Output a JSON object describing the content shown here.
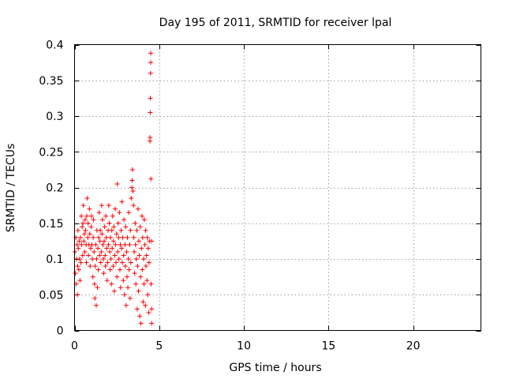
{
  "chart_data": {
    "type": "scatter",
    "title": "Day 195 of 2011, SRMTID for receiver lpal",
    "xlabel": "GPS time / hours",
    "ylabel": "SRMTID / TECUs",
    "xlim": [
      0,
      24
    ],
    "ylim": [
      0,
      0.4
    ],
    "xticks": [
      0,
      5,
      10,
      15,
      20
    ],
    "xtick_labels": [
      "0",
      "5",
      "10",
      "15",
      "20"
    ],
    "yticks": [
      0,
      0.05,
      0.1,
      0.15,
      0.2,
      0.25,
      0.3,
      0.35,
      0.4
    ],
    "ytick_labels": [
      "0",
      "0.05",
      "0.1",
      "0.15",
      "0.2",
      "0.25",
      "0.3",
      "0.35",
      "0.4"
    ],
    "grid": true,
    "marker": "+",
    "series": [
      {
        "name": "SRMTID",
        "color": "#ff0000",
        "points": [
          [
            0.02,
            0.11
          ],
          [
            0.05,
            0.08
          ],
          [
            0.08,
            0.13
          ],
          [
            0.1,
            0.065
          ],
          [
            0.12,
            0.1
          ],
          [
            0.15,
            0.12
          ],
          [
            0.17,
            0.05
          ],
          [
            0.18,
            0.09
          ],
          [
            0.2,
            0.14
          ],
          [
            0.22,
            0.115
          ],
          [
            0.25,
            0.085
          ],
          [
            0.27,
            0.125
          ],
          [
            0.3,
            0.1
          ],
          [
            0.32,
            0.07
          ],
          [
            0.35,
            0.13
          ],
          [
            0.37,
            0.095
          ],
          [
            0.4,
            0.16
          ],
          [
            0.42,
            0.12
          ],
          [
            0.45,
            0.145
          ],
          [
            0.48,
            0.105
          ],
          [
            0.5,
            0.15
          ],
          [
            0.52,
            0.175
          ],
          [
            0.55,
            0.125
          ],
          [
            0.58,
            0.135
          ],
          [
            0.6,
            0.11
          ],
          [
            0.62,
            0.155
          ],
          [
            0.65,
            0.14
          ],
          [
            0.68,
            0.12
          ],
          [
            0.7,
            0.095
          ],
          [
            0.72,
            0.16
          ],
          [
            0.75,
            0.185
          ],
          [
            0.78,
            0.13
          ],
          [
            0.8,
            0.15
          ],
          [
            0.82,
            0.105
          ],
          [
            0.85,
            0.12
          ],
          [
            0.88,
            0.17
          ],
          [
            0.9,
            0.135
          ],
          [
            0.92,
            0.09
          ],
          [
            0.95,
            0.115
          ],
          [
            0.98,
            0.145
          ],
          [
            1.0,
            0.16
          ],
          [
            1.02,
            0.12
          ],
          [
            1.05,
            0.1
          ],
          [
            1.08,
            0.075
          ],
          [
            1.1,
            0.13
          ],
          [
            1.12,
            0.155
          ],
          [
            1.15,
            0.11
          ],
          [
            1.18,
            0.065
          ],
          [
            1.2,
            0.045
          ],
          [
            1.22,
            0.09
          ],
          [
            1.25,
            0.12
          ],
          [
            1.28,
            0.035
          ],
          [
            1.3,
            0.1
          ],
          [
            1.32,
            0.14
          ],
          [
            1.35,
            0.06
          ],
          [
            1.38,
            0.115
          ],
          [
            1.4,
            0.085
          ],
          [
            1.42,
            0.13
          ],
          [
            1.45,
            0.165
          ],
          [
            1.48,
            0.105
          ],
          [
            1.5,
            0.125
          ],
          [
            1.52,
            0.14
          ],
          [
            1.55,
            0.095
          ],
          [
            1.58,
            0.11
          ],
          [
            1.6,
            0.175
          ],
          [
            1.62,
            0.135
          ],
          [
            1.65,
            0.155
          ],
          [
            1.68,
            0.12
          ],
          [
            1.7,
            0.1
          ],
          [
            1.72,
            0.08
          ],
          [
            1.75,
            0.125
          ],
          [
            1.78,
            0.145
          ],
          [
            1.8,
            0.105
          ],
          [
            1.82,
            0.09
          ],
          [
            1.85,
            0.16
          ],
          [
            1.88,
            0.13
          ],
          [
            1.9,
            0.115
          ],
          [
            1.92,
            0.07
          ],
          [
            1.95,
            0.095
          ],
          [
            1.98,
            0.14
          ],
          [
            2.0,
            0.12
          ],
          [
            2.02,
            0.175
          ],
          [
            2.05,
            0.15
          ],
          [
            2.08,
            0.11
          ],
          [
            2.1,
            0.085
          ],
          [
            2.12,
            0.13
          ],
          [
            2.15,
            0.1
          ],
          [
            2.18,
            0.065
          ],
          [
            2.2,
            0.14
          ],
          [
            2.22,
            0.115
          ],
          [
            2.25,
            0.16
          ],
          [
            2.28,
            0.09
          ],
          [
            2.3,
            0.125
          ],
          [
            2.32,
            0.145
          ],
          [
            2.35,
            0.055
          ],
          [
            2.38,
            0.105
          ],
          [
            2.4,
            0.17
          ],
          [
            2.42,
            0.12
          ],
          [
            2.45,
            0.095
          ],
          [
            2.48,
            0.135
          ],
          [
            2.5,
            0.075
          ],
          [
            2.52,
            0.205
          ],
          [
            2.55,
            0.11
          ],
          [
            2.58,
            0.15
          ],
          [
            2.6,
            0.13
          ],
          [
            2.62,
            0.1
          ],
          [
            2.65,
            0.165
          ],
          [
            2.68,
            0.085
          ],
          [
            2.7,
            0.12
          ],
          [
            2.72,
            0.06
          ],
          [
            2.75,
            0.14
          ],
          [
            2.78,
            0.115
          ],
          [
            2.8,
            0.18
          ],
          [
            2.82,
            0.095
          ],
          [
            2.85,
            0.13
          ],
          [
            2.88,
            0.07
          ],
          [
            2.9,
            0.105
          ],
          [
            2.92,
            0.155
          ],
          [
            2.95,
            0.05
          ],
          [
            2.98,
            0.12
          ],
          [
            3.0,
            0.09
          ],
          [
            3.02,
            0.145
          ],
          [
            3.05,
            0.035
          ],
          [
            3.08,
            0.11
          ],
          [
            3.1,
            0.075
          ],
          [
            3.12,
            0.13
          ],
          [
            3.15,
            0.06
          ],
          [
            3.18,
            0.1
          ],
          [
            3.2,
            0.165
          ],
          [
            3.22,
            0.085
          ],
          [
            3.25,
            0.12
          ],
          [
            3.28,
            0.045
          ],
          [
            3.3,
            0.14
          ],
          [
            3.32,
            0.095
          ],
          [
            3.35,
            0.185
          ],
          [
            3.38,
            0.2
          ],
          [
            3.4,
            0.21
          ],
          [
            3.42,
            0.225
          ],
          [
            3.45,
            0.195
          ],
          [
            3.48,
            0.175
          ],
          [
            3.5,
            0.13
          ],
          [
            3.52,
            0.11
          ],
          [
            3.55,
            0.08
          ],
          [
            3.58,
            0.15
          ],
          [
            3.6,
            0.12
          ],
          [
            3.62,
            0.065
          ],
          [
            3.65,
            0.1
          ],
          [
            3.68,
            0.14
          ],
          [
            3.7,
            0.03
          ],
          [
            3.72,
            0.09
          ],
          [
            3.75,
            0.17
          ],
          [
            3.78,
            0.055
          ],
          [
            3.8,
            0.125
          ],
          [
            3.82,
            0.105
          ],
          [
            3.85,
            0.02
          ],
          [
            3.88,
            0.145
          ],
          [
            3.9,
            0.075
          ],
          [
            3.92,
            0.01
          ],
          [
            3.95,
            0.115
          ],
          [
            3.98,
            0.16
          ],
          [
            4.0,
            0.085
          ],
          [
            4.02,
            0.13
          ],
          [
            4.05,
            0.04
          ],
          [
            4.08,
            0.1
          ],
          [
            4.1,
            0.065
          ],
          [
            4.12,
            0.155
          ],
          [
            4.15,
            0.12
          ],
          [
            4.18,
            0.035
          ],
          [
            4.2,
            0.14
          ],
          [
            4.22,
            0.09
          ],
          [
            4.25,
            0.105
          ],
          [
            4.28,
            0.07
          ],
          [
            4.3,
            0.13
          ],
          [
            4.32,
            0.05
          ],
          [
            4.35,
            0.115
          ],
          [
            4.38,
            0.025
          ],
          [
            4.4,
            0.095
          ],
          [
            4.42,
            0.125
          ],
          [
            4.45,
            0.265
          ],
          [
            4.46,
            0.27
          ],
          [
            4.47,
            0.305
          ],
          [
            4.48,
            0.325
          ],
          [
            4.49,
            0.36
          ],
          [
            4.5,
            0.375
          ],
          [
            4.5,
            0.388
          ],
          [
            4.51,
            0.212
          ],
          [
            4.52,
            0.065
          ],
          [
            4.55,
            0.125
          ],
          [
            4.55,
            0.01
          ],
          [
            4.55,
            0.03
          ]
        ]
      }
    ]
  }
}
